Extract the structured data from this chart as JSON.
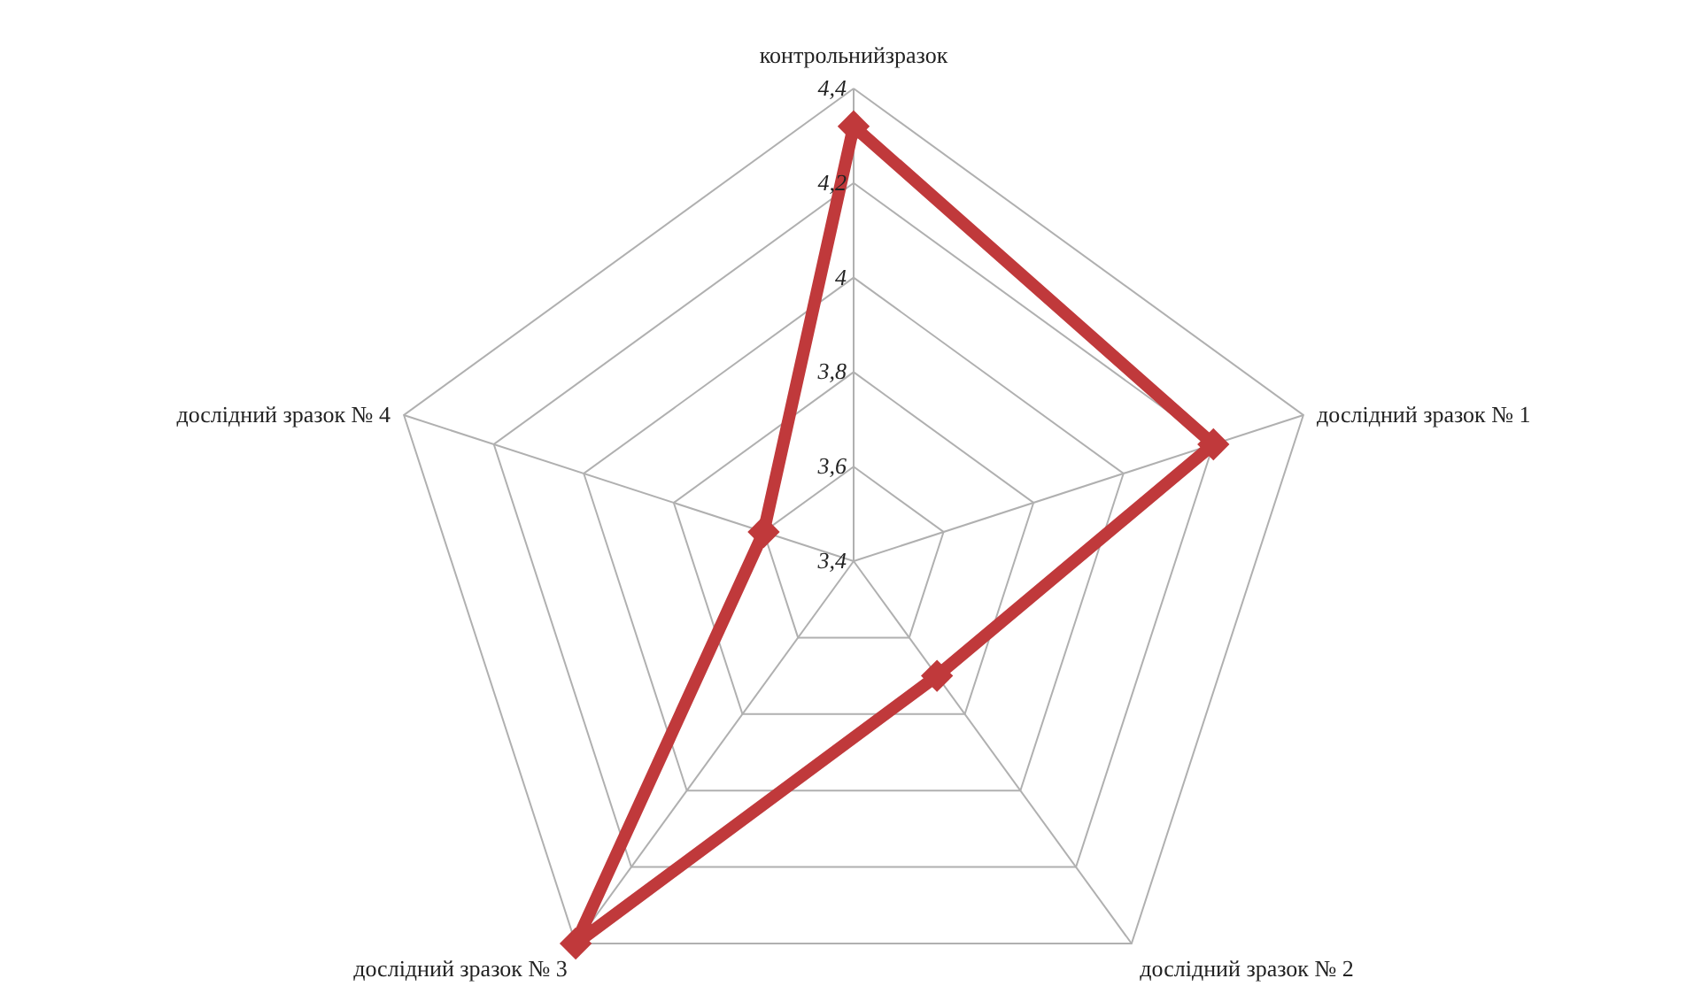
{
  "chart_data": {
    "type": "radar",
    "categories": [
      "контрольнийзразок",
      "дослідний зразок № 1",
      "дослідний зразок № 2",
      "дослідний зразок № 3",
      "дослідний зразок № 4"
    ],
    "series": [
      {
        "color": "#c0393b",
        "values": [
          4.32,
          4.2,
          3.7,
          4.4,
          3.6
        ]
      }
    ],
    "ylim": [
      3.4,
      4.4
    ],
    "yticks": [
      {
        "value": 3.4,
        "label": "3,4"
      },
      {
        "value": 3.6,
        "label": "3,6"
      },
      {
        "value": 3.8,
        "label": "3,8"
      },
      {
        "value": 4,
        "label": "4"
      },
      {
        "value": 4.2,
        "label": "4,2"
      },
      {
        "value": 4.4,
        "label": "4,4"
      }
    ],
    "grid": true,
    "marker": "diamond",
    "line_style": "solid"
  }
}
